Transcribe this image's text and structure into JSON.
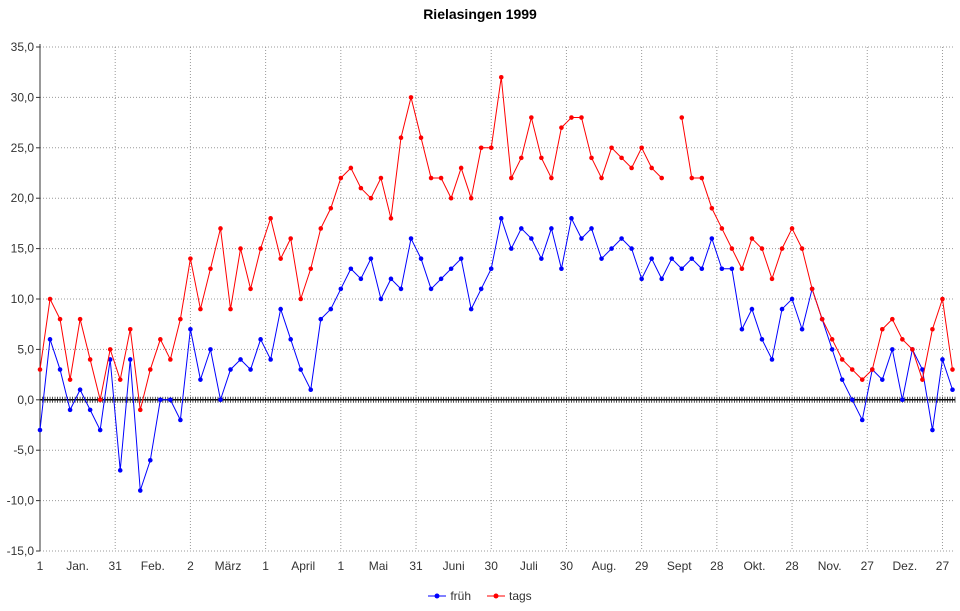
{
  "chart_data": {
    "type": "line",
    "title": "Rielasingen 1999",
    "xlabel": "",
    "ylabel": "",
    "ylim": [
      -15,
      35
    ],
    "yticks": [
      "35,0",
      "30,0",
      "25,0",
      "20,0",
      "15,0",
      "10,0",
      "5,0",
      "0,0",
      "-5,0",
      "-10,0",
      "-15,0"
    ],
    "ytick_values": [
      35,
      30,
      25,
      20,
      15,
      10,
      5,
      0,
      -5,
      -10,
      -15
    ],
    "xlim_days": [
      1,
      366
    ],
    "xtick_labels": [
      {
        "day": 1,
        "label": "1"
      },
      {
        "day": 16,
        "label": "Jan."
      },
      {
        "day": 31,
        "label": "31"
      },
      {
        "day": 46,
        "label": "Feb."
      },
      {
        "day": 61,
        "label": "2"
      },
      {
        "day": 76,
        "label": "März"
      },
      {
        "day": 91,
        "label": "1"
      },
      {
        "day": 106,
        "label": "April"
      },
      {
        "day": 121,
        "label": "1"
      },
      {
        "day": 136,
        "label": "Mai"
      },
      {
        "day": 151,
        "label": "31"
      },
      {
        "day": 166,
        "label": "Juni"
      },
      {
        "day": 181,
        "label": "30"
      },
      {
        "day": 196,
        "label": "Juli"
      },
      {
        "day": 211,
        "label": "30"
      },
      {
        "day": 226,
        "label": "Aug."
      },
      {
        "day": 241,
        "label": "29"
      },
      {
        "day": 256,
        "label": "Sept"
      },
      {
        "day": 271,
        "label": "28"
      },
      {
        "day": 286,
        "label": "Okt."
      },
      {
        "day": 301,
        "label": "28"
      },
      {
        "day": 316,
        "label": "Nov."
      },
      {
        "day": 331,
        "label": "27"
      },
      {
        "day": 346,
        "label": "Dez."
      },
      {
        "day": 361,
        "label": "27"
      }
    ],
    "grid_days": [
      1,
      31,
      61,
      91,
      121,
      151,
      181,
      211,
      241,
      271,
      301,
      331,
      361
    ],
    "grid": true,
    "legend_position": "bottom",
    "x_step_days": 4,
    "series": [
      {
        "name": "früh",
        "color": "#0000ff",
        "values": [
          -3,
          6,
          3,
          -1,
          1,
          -1,
          -3,
          4,
          -7,
          4,
          -9,
          -6,
          0,
          0,
          -2,
          7,
          2,
          5,
          0,
          3,
          4,
          3,
          6,
          4,
          9,
          6,
          3,
          1,
          8,
          9,
          11,
          13,
          12,
          14,
          10,
          12,
          11,
          16,
          14,
          11,
          12,
          13,
          14,
          9,
          11,
          13,
          18,
          15,
          17,
          16,
          14,
          17,
          13,
          18,
          16,
          17,
          14,
          15,
          16,
          15,
          12,
          14,
          12,
          14,
          13,
          14,
          13,
          16,
          13,
          13,
          7,
          9,
          6,
          4,
          9,
          10,
          7,
          11,
          8,
          5,
          2,
          0,
          -2,
          3,
          2,
          5,
          0,
          5,
          3,
          -3,
          4,
          1
        ]
      },
      {
        "name": "tags",
        "color": "#ff0000",
        "values": [
          3,
          10,
          8,
          2,
          8,
          4,
          0,
          5,
          2,
          7,
          -1,
          3,
          6,
          4,
          8,
          14,
          9,
          13,
          17,
          9,
          15,
          11,
          15,
          18,
          14,
          16,
          10,
          13,
          17,
          19,
          22,
          23,
          21,
          20,
          22,
          18,
          26,
          30,
          26,
          22,
          22,
          20,
          23,
          20,
          25,
          25,
          32,
          22,
          24,
          28,
          24,
          22,
          27,
          28,
          28,
          24,
          22,
          25,
          24,
          23,
          25,
          23,
          22,
          null,
          28,
          22,
          22,
          19,
          17,
          15,
          13,
          16,
          15,
          12,
          15,
          17,
          15,
          11,
          8,
          6,
          4,
          3,
          2,
          3,
          7,
          8,
          6,
          5,
          2,
          7,
          10,
          3
        ]
      }
    ]
  }
}
